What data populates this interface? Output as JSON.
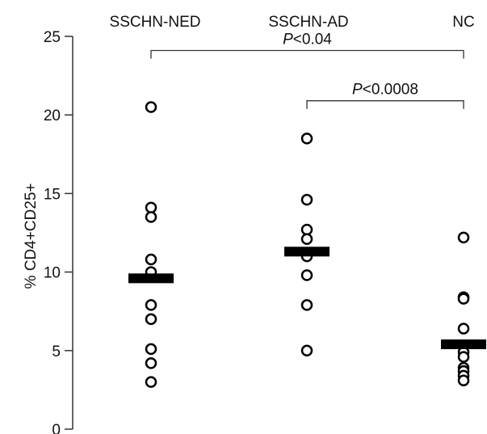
{
  "chart_data": {
    "type": "scatter",
    "title": "",
    "xlabel": "",
    "ylabel": "% CD4+CD25+",
    "ylim": [
      0,
      25
    ],
    "yticks": [
      0,
      5,
      10,
      15,
      20,
      25
    ],
    "categories": [
      "SSCHN-NED",
      "SSCHN-AD",
      "NC"
    ],
    "series": [
      {
        "category": "SSCHN-NED",
        "values": [
          20.5,
          14.1,
          13.5,
          10.8,
          10.0,
          7.9,
          7.0,
          5.1,
          4.2,
          3.0
        ],
        "mean": 9.6
      },
      {
        "category": "SSCHN-AD",
        "values": [
          18.5,
          14.6,
          12.7,
          12.1,
          11.0,
          9.8,
          7.9,
          5.0
        ],
        "mean": 11.3
      },
      {
        "category": "NC",
        "values": [
          12.2,
          8.4,
          8.3,
          6.4,
          4.9,
          4.6,
          3.9,
          3.7,
          3.4,
          3.1
        ],
        "mean": 5.4
      }
    ],
    "annotations": [
      {
        "label_italic": "P",
        "label_rest": "<0.04",
        "from": "SSCHN-NED",
        "to": "NC",
        "y": 24.1
      },
      {
        "label_italic": "P",
        "label_rest": "<0.0008",
        "from": "SSCHN-AD",
        "to": "NC",
        "y": 20.9
      }
    ],
    "grid": false,
    "legend": "none",
    "colors": {
      "marker_stroke": "#000000",
      "marker_fill": "#ffffff",
      "mean_bar": "#000000",
      "axis": "#333333"
    }
  }
}
